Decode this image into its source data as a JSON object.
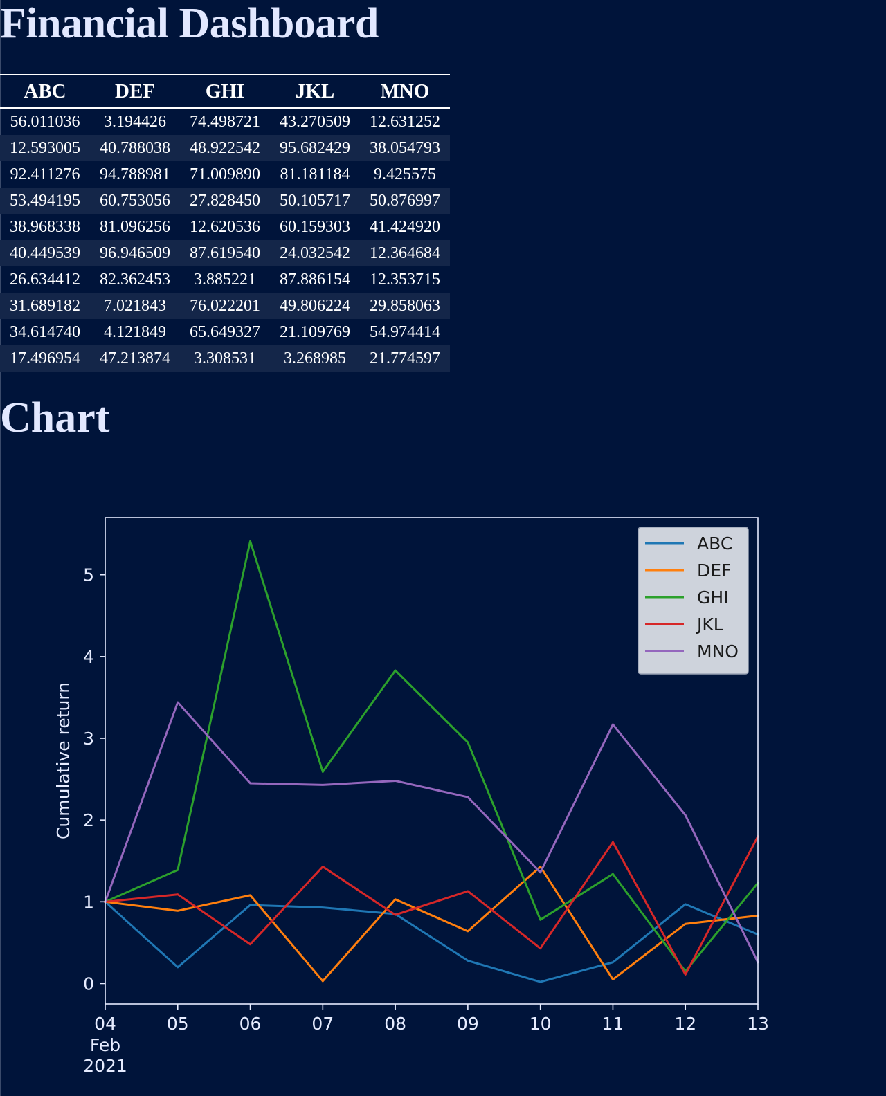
{
  "page": {
    "title": "Financial Dashboard",
    "chart_heading": "Chart"
  },
  "table": {
    "columns": [
      "ABC",
      "DEF",
      "GHI",
      "JKL",
      "MNO"
    ],
    "rows": [
      [
        "56.011036",
        "3.194426",
        "74.498721",
        "43.270509",
        "12.631252"
      ],
      [
        "12.593005",
        "40.788038",
        "48.922542",
        "95.682429",
        "38.054793"
      ],
      [
        "92.411276",
        "94.788981",
        "71.009890",
        "81.181184",
        "9.425575"
      ],
      [
        "53.494195",
        "60.753056",
        "27.828450",
        "50.105717",
        "50.876997"
      ],
      [
        "38.968338",
        "81.096256",
        "12.620536",
        "60.159303",
        "41.424920"
      ],
      [
        "40.449539",
        "96.946509",
        "87.619540",
        "24.032542",
        "12.364684"
      ],
      [
        "26.634412",
        "82.362453",
        "3.885221",
        "87.886154",
        "12.353715"
      ],
      [
        "31.689182",
        "7.021843",
        "76.022201",
        "49.806224",
        "29.858063"
      ],
      [
        "34.614740",
        "4.121849",
        "65.649327",
        "21.109769",
        "54.974414"
      ],
      [
        "17.496954",
        "47.213874",
        "3.308531",
        "3.268985",
        "21.774597"
      ]
    ]
  },
  "chart_data": {
    "type": "line",
    "x": [
      "2021-02-04",
      "2021-02-05",
      "2021-02-06",
      "2021-02-07",
      "2021-02-08",
      "2021-02-09",
      "2021-02-10",
      "2021-02-11",
      "2021-02-12",
      "2021-02-13"
    ],
    "x_tick_labels": [
      "04",
      "05",
      "06",
      "07",
      "08",
      "09",
      "10",
      "11",
      "12",
      "13"
    ],
    "x_tick_sublabel": [
      "Feb",
      "2021"
    ],
    "y_ticks": [
      0,
      1,
      2,
      3,
      4,
      5
    ],
    "ylim": [
      -0.25,
      5.7
    ],
    "ylabel": "Cumulative return",
    "xlabel": "",
    "legend_position": "upper right",
    "grid": false,
    "series": [
      {
        "name": "ABC",
        "color": "#1f77b4",
        "values": [
          1.0,
          0.2,
          0.96,
          0.93,
          0.85,
          0.28,
          0.02,
          0.26,
          0.97,
          0.6
        ]
      },
      {
        "name": "DEF",
        "color": "#ff7f0e",
        "values": [
          1.0,
          0.89,
          1.08,
          0.03,
          1.03,
          0.64,
          1.43,
          0.05,
          0.73,
          0.83
        ]
      },
      {
        "name": "GHI",
        "color": "#2ca02c",
        "values": [
          1.0,
          1.39,
          5.41,
          2.59,
          3.83,
          2.95,
          0.78,
          1.34,
          0.15,
          1.23
        ]
      },
      {
        "name": "JKL",
        "color": "#d62728",
        "values": [
          1.0,
          1.09,
          0.48,
          1.43,
          0.84,
          1.13,
          0.43,
          1.73,
          0.11,
          1.8
        ]
      },
      {
        "name": "MNO",
        "color": "#9467bd",
        "values": [
          1.0,
          3.44,
          2.45,
          2.43,
          2.48,
          2.28,
          1.36,
          3.17,
          2.06,
          0.26
        ]
      }
    ]
  }
}
